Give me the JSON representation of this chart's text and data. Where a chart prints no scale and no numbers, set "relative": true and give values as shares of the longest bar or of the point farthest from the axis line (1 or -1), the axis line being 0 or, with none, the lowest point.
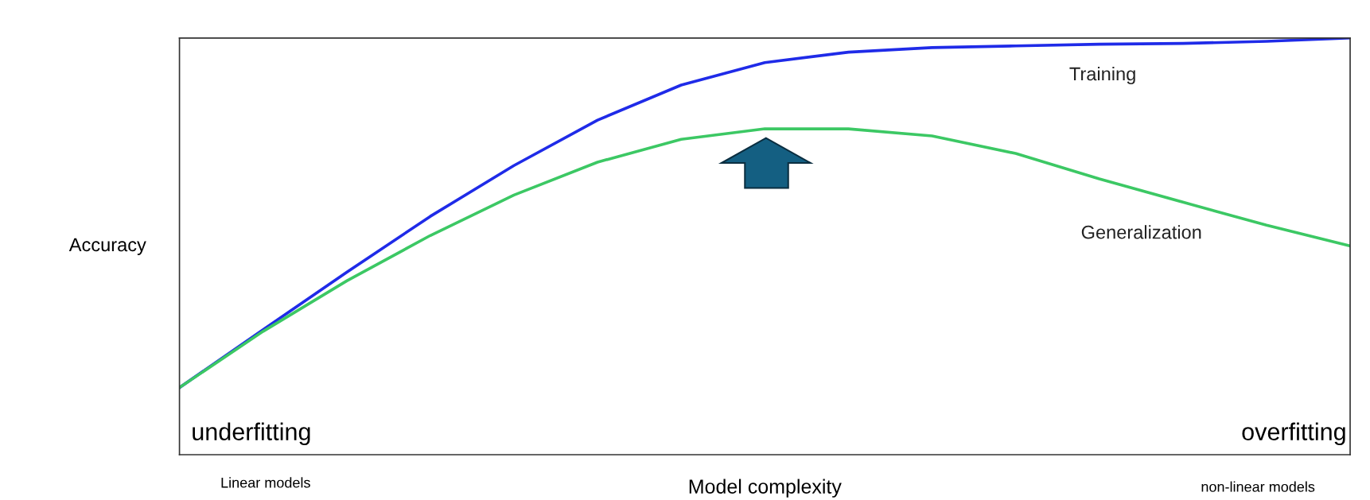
{
  "chart_data": {
    "type": "line",
    "relative": true,
    "xlabel": "Model complexity",
    "ylabel": "Accuracy",
    "categories": [
      null,
      null,
      null,
      null,
      null,
      null,
      null,
      null,
      null,
      null,
      null,
      null,
      null,
      null,
      null
    ],
    "series": [
      {
        "name": "Training",
        "color": "#1f2be8",
        "values": [
          0.161,
          0.3,
          0.438,
          0.572,
          0.694,
          0.803,
          0.887,
          0.941,
          0.966,
          0.977,
          0.981,
          0.985,
          0.987,
          0.992,
          1.0
        ]
      },
      {
        "name": "Generalization",
        "color": "#3cc864",
        "values": [
          0.161,
          0.296,
          0.417,
          0.526,
          0.623,
          0.702,
          0.757,
          0.782,
          0.782,
          0.765,
          0.723,
          0.662,
          0.606,
          0.551,
          0.501
        ]
      }
    ],
    "annotations": [
      "underfitting",
      "overfitting",
      "Linear models",
      "non-linear models"
    ],
    "legend": false,
    "marker": "none",
    "line_style": "solid"
  }
}
